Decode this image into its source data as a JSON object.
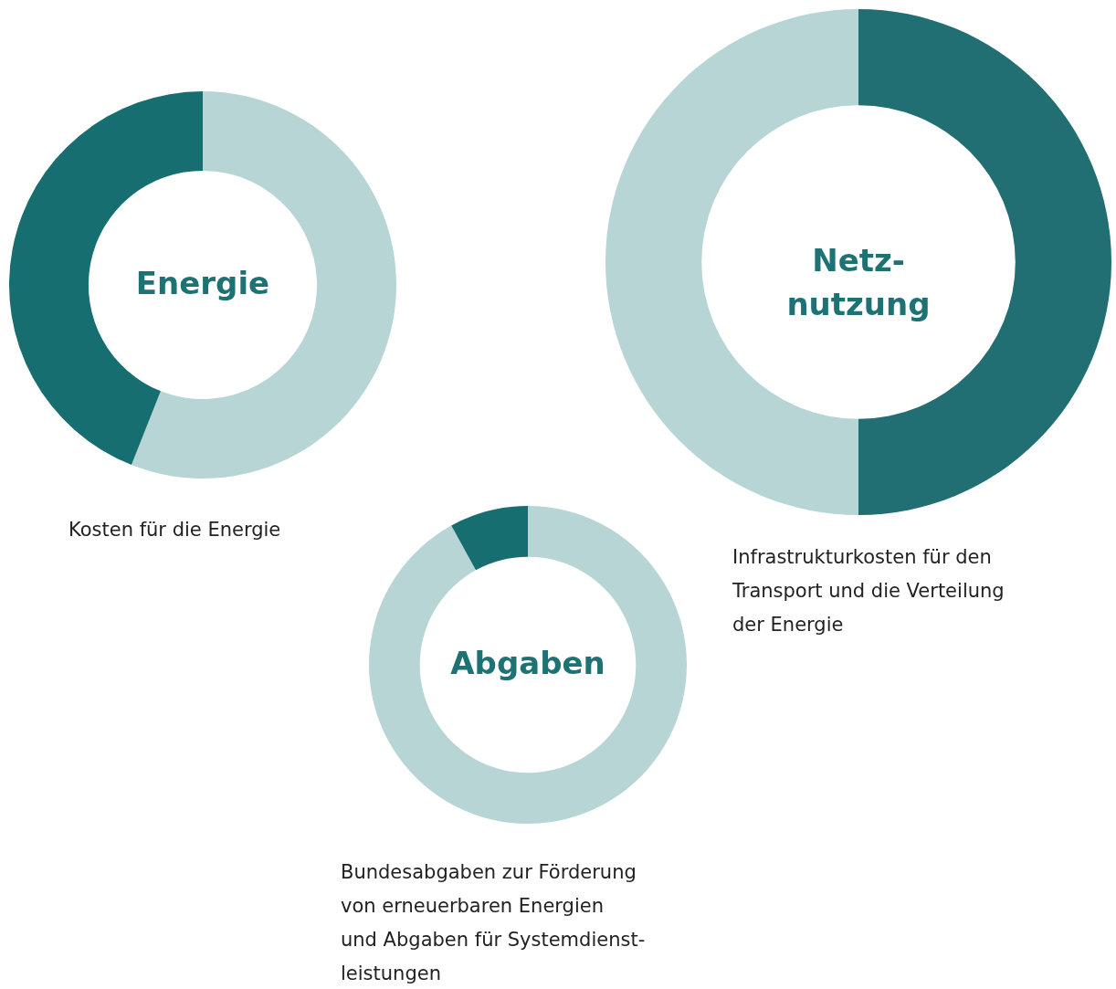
{
  "chart_data": [
    {
      "type": "donut",
      "title": "Energie",
      "categories": [
        null,
        null
      ],
      "values": [
        56,
        44
      ],
      "colors": [
        "#b8d5d6",
        "#176e70"
      ],
      "annotations": [
        "Kosten für die Energie"
      ]
    },
    {
      "type": "donut",
      "title": "Netz-\nnutzung",
      "categories": [
        null,
        null
      ],
      "values": [
        50,
        50
      ],
      "colors": [
        "#216e73",
        "#b8d5d6"
      ],
      "annotations": [
        "Infrastrukturkosten für den\nTransport und die Verteilung\nder Energie"
      ]
    },
    {
      "type": "donut",
      "title": "Abgaben",
      "categories": [
        null,
        null
      ],
      "values": [
        92,
        8
      ],
      "colors": [
        "#b8d5d6",
        "#176e70"
      ],
      "annotations": [
        "Bundesabgaben zur Förderung\nvon erneuerbaren Energien\nund Abgaben für Systemdienst-\nleistungen"
      ]
    }
  ]
}
